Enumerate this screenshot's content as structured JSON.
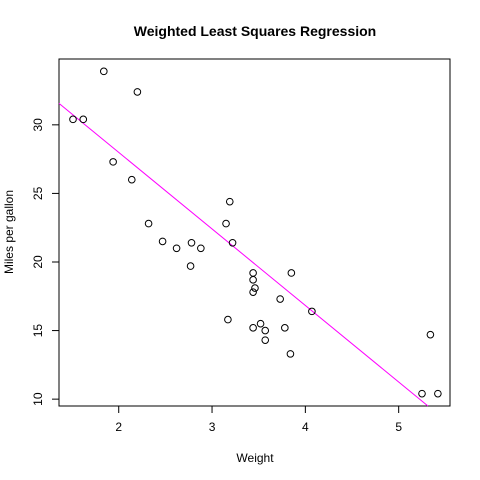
{
  "chart_data": {
    "type": "scatter",
    "title": "Weighted Least Squares Regression",
    "xlabel": "Weight",
    "ylabel": "Miles per gallon",
    "xlim": [
      1.36,
      5.55
    ],
    "ylim": [
      9.5,
      34.8
    ],
    "xticks": [
      2,
      3,
      4,
      5
    ],
    "yticks": [
      10,
      15,
      20,
      25,
      30
    ],
    "grid": false,
    "point_style": "open-circle",
    "points": [
      {
        "x": 1.51,
        "y": 30.4
      },
      {
        "x": 1.62,
        "y": 30.4
      },
      {
        "x": 1.84,
        "y": 33.9
      },
      {
        "x": 1.94,
        "y": 27.3
      },
      {
        "x": 2.14,
        "y": 26.0
      },
      {
        "x": 2.2,
        "y": 32.4
      },
      {
        "x": 2.32,
        "y": 22.8
      },
      {
        "x": 2.47,
        "y": 21.5
      },
      {
        "x": 2.62,
        "y": 21.0
      },
      {
        "x": 2.77,
        "y": 19.7
      },
      {
        "x": 2.78,
        "y": 21.4
      },
      {
        "x": 2.88,
        "y": 21.0
      },
      {
        "x": 3.15,
        "y": 22.8
      },
      {
        "x": 3.17,
        "y": 15.8
      },
      {
        "x": 3.19,
        "y": 24.4
      },
      {
        "x": 3.22,
        "y": 21.4
      },
      {
        "x": 3.44,
        "y": 18.7
      },
      {
        "x": 3.44,
        "y": 19.2
      },
      {
        "x": 3.44,
        "y": 17.8
      },
      {
        "x": 3.44,
        "y": 15.2
      },
      {
        "x": 3.46,
        "y": 18.1
      },
      {
        "x": 3.52,
        "y": 15.5
      },
      {
        "x": 3.57,
        "y": 15.0
      },
      {
        "x": 3.57,
        "y": 14.3
      },
      {
        "x": 3.73,
        "y": 17.3
      },
      {
        "x": 3.78,
        "y": 15.2
      },
      {
        "x": 3.84,
        "y": 13.3
      },
      {
        "x": 3.85,
        "y": 19.2
      },
      {
        "x": 4.07,
        "y": 16.4
      },
      {
        "x": 5.25,
        "y": 10.4
      },
      {
        "x": 5.34,
        "y": 14.7
      },
      {
        "x": 5.42,
        "y": 10.4
      }
    ],
    "fit_line": {
      "intercept": 39.15,
      "slope": -5.58,
      "color": "#ff00ff"
    }
  }
}
